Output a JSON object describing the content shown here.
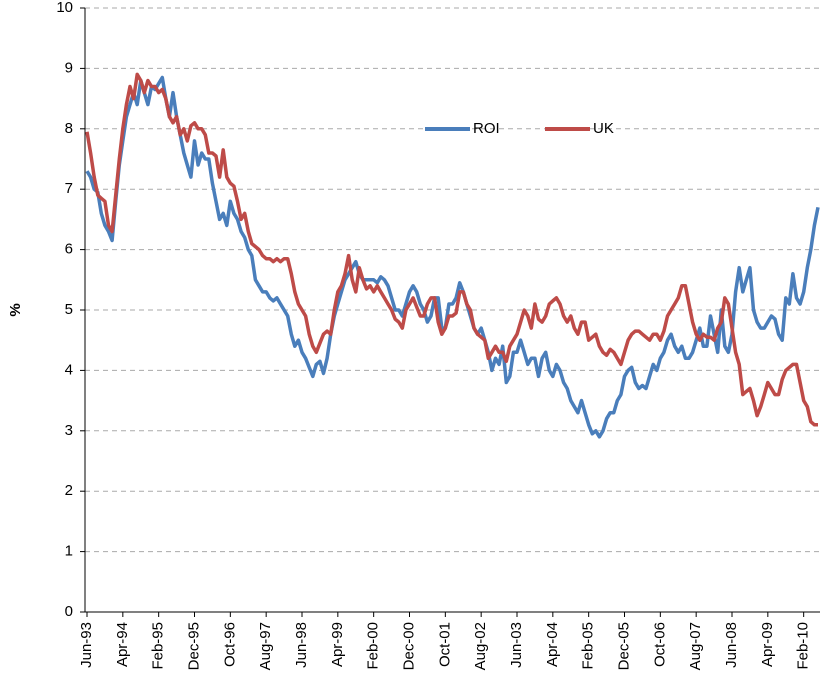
{
  "chart_data": {
    "type": "line",
    "ylabel": "%",
    "legend": "top",
    "grid": true,
    "ylim": [
      0,
      10
    ],
    "yticks": [
      0,
      1,
      2,
      3,
      4,
      5,
      6,
      7,
      8,
      9,
      10
    ],
    "categories": [
      "Jun-93",
      null,
      null,
      null,
      null,
      null,
      null,
      null,
      null,
      null,
      "Apr-94",
      null,
      null,
      null,
      null,
      null,
      null,
      null,
      null,
      null,
      "Feb-95",
      null,
      null,
      null,
      null,
      null,
      null,
      null,
      null,
      null,
      "Dec-95",
      null,
      null,
      null,
      null,
      null,
      null,
      null,
      null,
      null,
      "Oct-96",
      null,
      null,
      null,
      null,
      null,
      null,
      null,
      null,
      null,
      "Aug-97",
      null,
      null,
      null,
      null,
      null,
      null,
      null,
      null,
      null,
      "Jun-98",
      null,
      null,
      null,
      null,
      null,
      null,
      null,
      null,
      null,
      "Apr-99",
      null,
      null,
      null,
      null,
      null,
      null,
      null,
      null,
      null,
      "Feb-00",
      null,
      null,
      null,
      null,
      null,
      null,
      null,
      null,
      null,
      "Dec-00",
      null,
      null,
      null,
      null,
      null,
      null,
      null,
      null,
      null,
      "Oct-01",
      null,
      null,
      null,
      null,
      null,
      null,
      null,
      null,
      null,
      "Aug-02",
      null,
      null,
      null,
      null,
      null,
      null,
      null,
      null,
      null,
      "Jun-03",
      null,
      null,
      null,
      null,
      null,
      null,
      null,
      null,
      null,
      "Apr-04",
      null,
      null,
      null,
      null,
      null,
      null,
      null,
      null,
      null,
      "Feb-05",
      null,
      null,
      null,
      null,
      null,
      null,
      null,
      null,
      null,
      "Dec-05",
      null,
      null,
      null,
      null,
      null,
      null,
      null,
      null,
      null,
      "Oct-06",
      null,
      null,
      null,
      null,
      null,
      null,
      null,
      null,
      null,
      "Aug-07",
      null,
      null,
      null,
      null,
      null,
      null,
      null,
      null,
      null,
      "Jun-08",
      null,
      null,
      null,
      null,
      null,
      null,
      null,
      null,
      null,
      "Apr-09",
      null,
      null,
      null,
      null,
      null,
      null,
      null,
      null,
      null,
      "Feb-10",
      null,
      null,
      null,
      null
    ],
    "series": [
      {
        "name": "ROI",
        "color": "#4a7ebb",
        "values": [
          7.3,
          7.2,
          7.0,
          6.95,
          6.6,
          6.4,
          6.3,
          6.15,
          6.8,
          7.4,
          7.8,
          8.2,
          8.4,
          8.6,
          8.4,
          8.8,
          8.6,
          8.4,
          8.7,
          8.65,
          8.75,
          8.85,
          8.5,
          8.2,
          8.6,
          8.2,
          7.9,
          7.6,
          7.4,
          7.2,
          7.8,
          7.4,
          7.6,
          7.5,
          7.5,
          7.1,
          6.8,
          6.5,
          6.6,
          6.4,
          6.8,
          6.6,
          6.5,
          6.3,
          6.2,
          6.0,
          5.9,
          5.5,
          5.4,
          5.3,
          5.3,
          5.2,
          5.15,
          5.2,
          5.1,
          5.0,
          4.9,
          4.6,
          4.4,
          4.5,
          4.3,
          4.2,
          4.05,
          3.9,
          4.1,
          4.15,
          3.95,
          4.2,
          4.6,
          4.9,
          5.1,
          5.3,
          5.5,
          5.6,
          5.7,
          5.8,
          5.6,
          5.5,
          5.5,
          5.5,
          5.5,
          5.45,
          5.55,
          5.5,
          5.4,
          5.2,
          5.0,
          5.0,
          4.9,
          5.1,
          5.3,
          5.4,
          5.3,
          5.1,
          5.0,
          4.8,
          4.9,
          5.2,
          5.2,
          4.7,
          4.7,
          5.1,
          5.1,
          5.2,
          5.45,
          5.3,
          5.1,
          4.9,
          4.7,
          4.6,
          4.7,
          4.5,
          4.3,
          4.0,
          4.2,
          4.1,
          4.4,
          3.8,
          3.9,
          4.3,
          4.3,
          4.5,
          4.3,
          4.1,
          4.2,
          4.2,
          3.9,
          4.2,
          4.3,
          4.0,
          3.9,
          4.1,
          4.0,
          3.8,
          3.7,
          3.5,
          3.4,
          3.3,
          3.5,
          3.3,
          3.1,
          2.95,
          3.0,
          2.9,
          3.0,
          3.2,
          3.3,
          3.3,
          3.5,
          3.6,
          3.9,
          4.0,
          4.05,
          3.8,
          3.7,
          3.75,
          3.7,
          3.9,
          4.1,
          4.0,
          4.2,
          4.3,
          4.5,
          4.6,
          4.4,
          4.3,
          4.4,
          4.2,
          4.2,
          4.3,
          4.5,
          4.7,
          4.4,
          4.4,
          4.9,
          4.6,
          4.3,
          5.0,
          4.4,
          4.3,
          4.6,
          5.3,
          5.7,
          5.3,
          5.5,
          5.7,
          5.0,
          4.8,
          4.7,
          4.7,
          4.8,
          4.9,
          4.85,
          4.6,
          4.5,
          5.2,
          5.1,
          5.6,
          5.2,
          5.1,
          5.3,
          5.7,
          6.0,
          6.4,
          6.7
        ]
      },
      {
        "name": "UK",
        "color": "#be4b48",
        "values": [
          7.95,
          7.6,
          7.2,
          6.9,
          6.85,
          6.8,
          6.4,
          6.3,
          6.9,
          7.5,
          8.0,
          8.4,
          8.7,
          8.5,
          8.9,
          8.8,
          8.6,
          8.8,
          8.7,
          8.7,
          8.6,
          8.65,
          8.5,
          8.2,
          8.1,
          8.2,
          7.9,
          8.0,
          7.8,
          8.05,
          8.1,
          8.0,
          8.0,
          7.9,
          7.6,
          7.6,
          7.55,
          7.2,
          7.65,
          7.2,
          7.1,
          7.05,
          6.8,
          6.5,
          6.6,
          6.3,
          6.1,
          6.05,
          6.0,
          5.9,
          5.85,
          5.85,
          5.8,
          5.85,
          5.8,
          5.85,
          5.85,
          5.6,
          5.3,
          5.1,
          5.0,
          4.9,
          4.6,
          4.4,
          4.3,
          4.45,
          4.6,
          4.65,
          4.6,
          5.0,
          5.3,
          5.4,
          5.6,
          5.9,
          5.5,
          5.3,
          5.7,
          5.5,
          5.35,
          5.4,
          5.3,
          5.4,
          5.3,
          5.2,
          5.1,
          5.0,
          4.85,
          4.8,
          4.7,
          5.0,
          5.1,
          5.2,
          5.05,
          4.9,
          4.9,
          5.1,
          5.2,
          5.2,
          4.8,
          4.6,
          4.7,
          4.9,
          4.9,
          4.95,
          5.3,
          5.3,
          5.1,
          5.0,
          4.7,
          4.6,
          4.55,
          4.5,
          4.2,
          4.3,
          4.4,
          4.3,
          4.3,
          4.15,
          4.4,
          4.5,
          4.6,
          4.8,
          5.0,
          4.9,
          4.7,
          5.1,
          4.85,
          4.8,
          4.9,
          5.1,
          5.15,
          5.2,
          5.1,
          4.9,
          4.8,
          4.9,
          4.7,
          4.6,
          4.8,
          4.8,
          4.5,
          4.55,
          4.6,
          4.4,
          4.3,
          4.25,
          4.35,
          4.3,
          4.2,
          4.1,
          4.3,
          4.5,
          4.6,
          4.65,
          4.65,
          4.6,
          4.55,
          4.5,
          4.6,
          4.6,
          4.5,
          4.65,
          4.9,
          5.0,
          5.1,
          5.2,
          5.4,
          5.4,
          5.1,
          4.8,
          4.6,
          4.5,
          4.6,
          4.55,
          4.55,
          4.5,
          4.7,
          4.8,
          5.2,
          5.1,
          4.7,
          4.3,
          4.1,
          3.6,
          3.65,
          3.7,
          3.5,
          3.25,
          3.4,
          3.6,
          3.8,
          3.7,
          3.6,
          3.6,
          3.85,
          4.0,
          4.05,
          4.1,
          4.1,
          3.8,
          3.5,
          3.4,
          3.15,
          3.1,
          3.1
        ]
      }
    ]
  }
}
